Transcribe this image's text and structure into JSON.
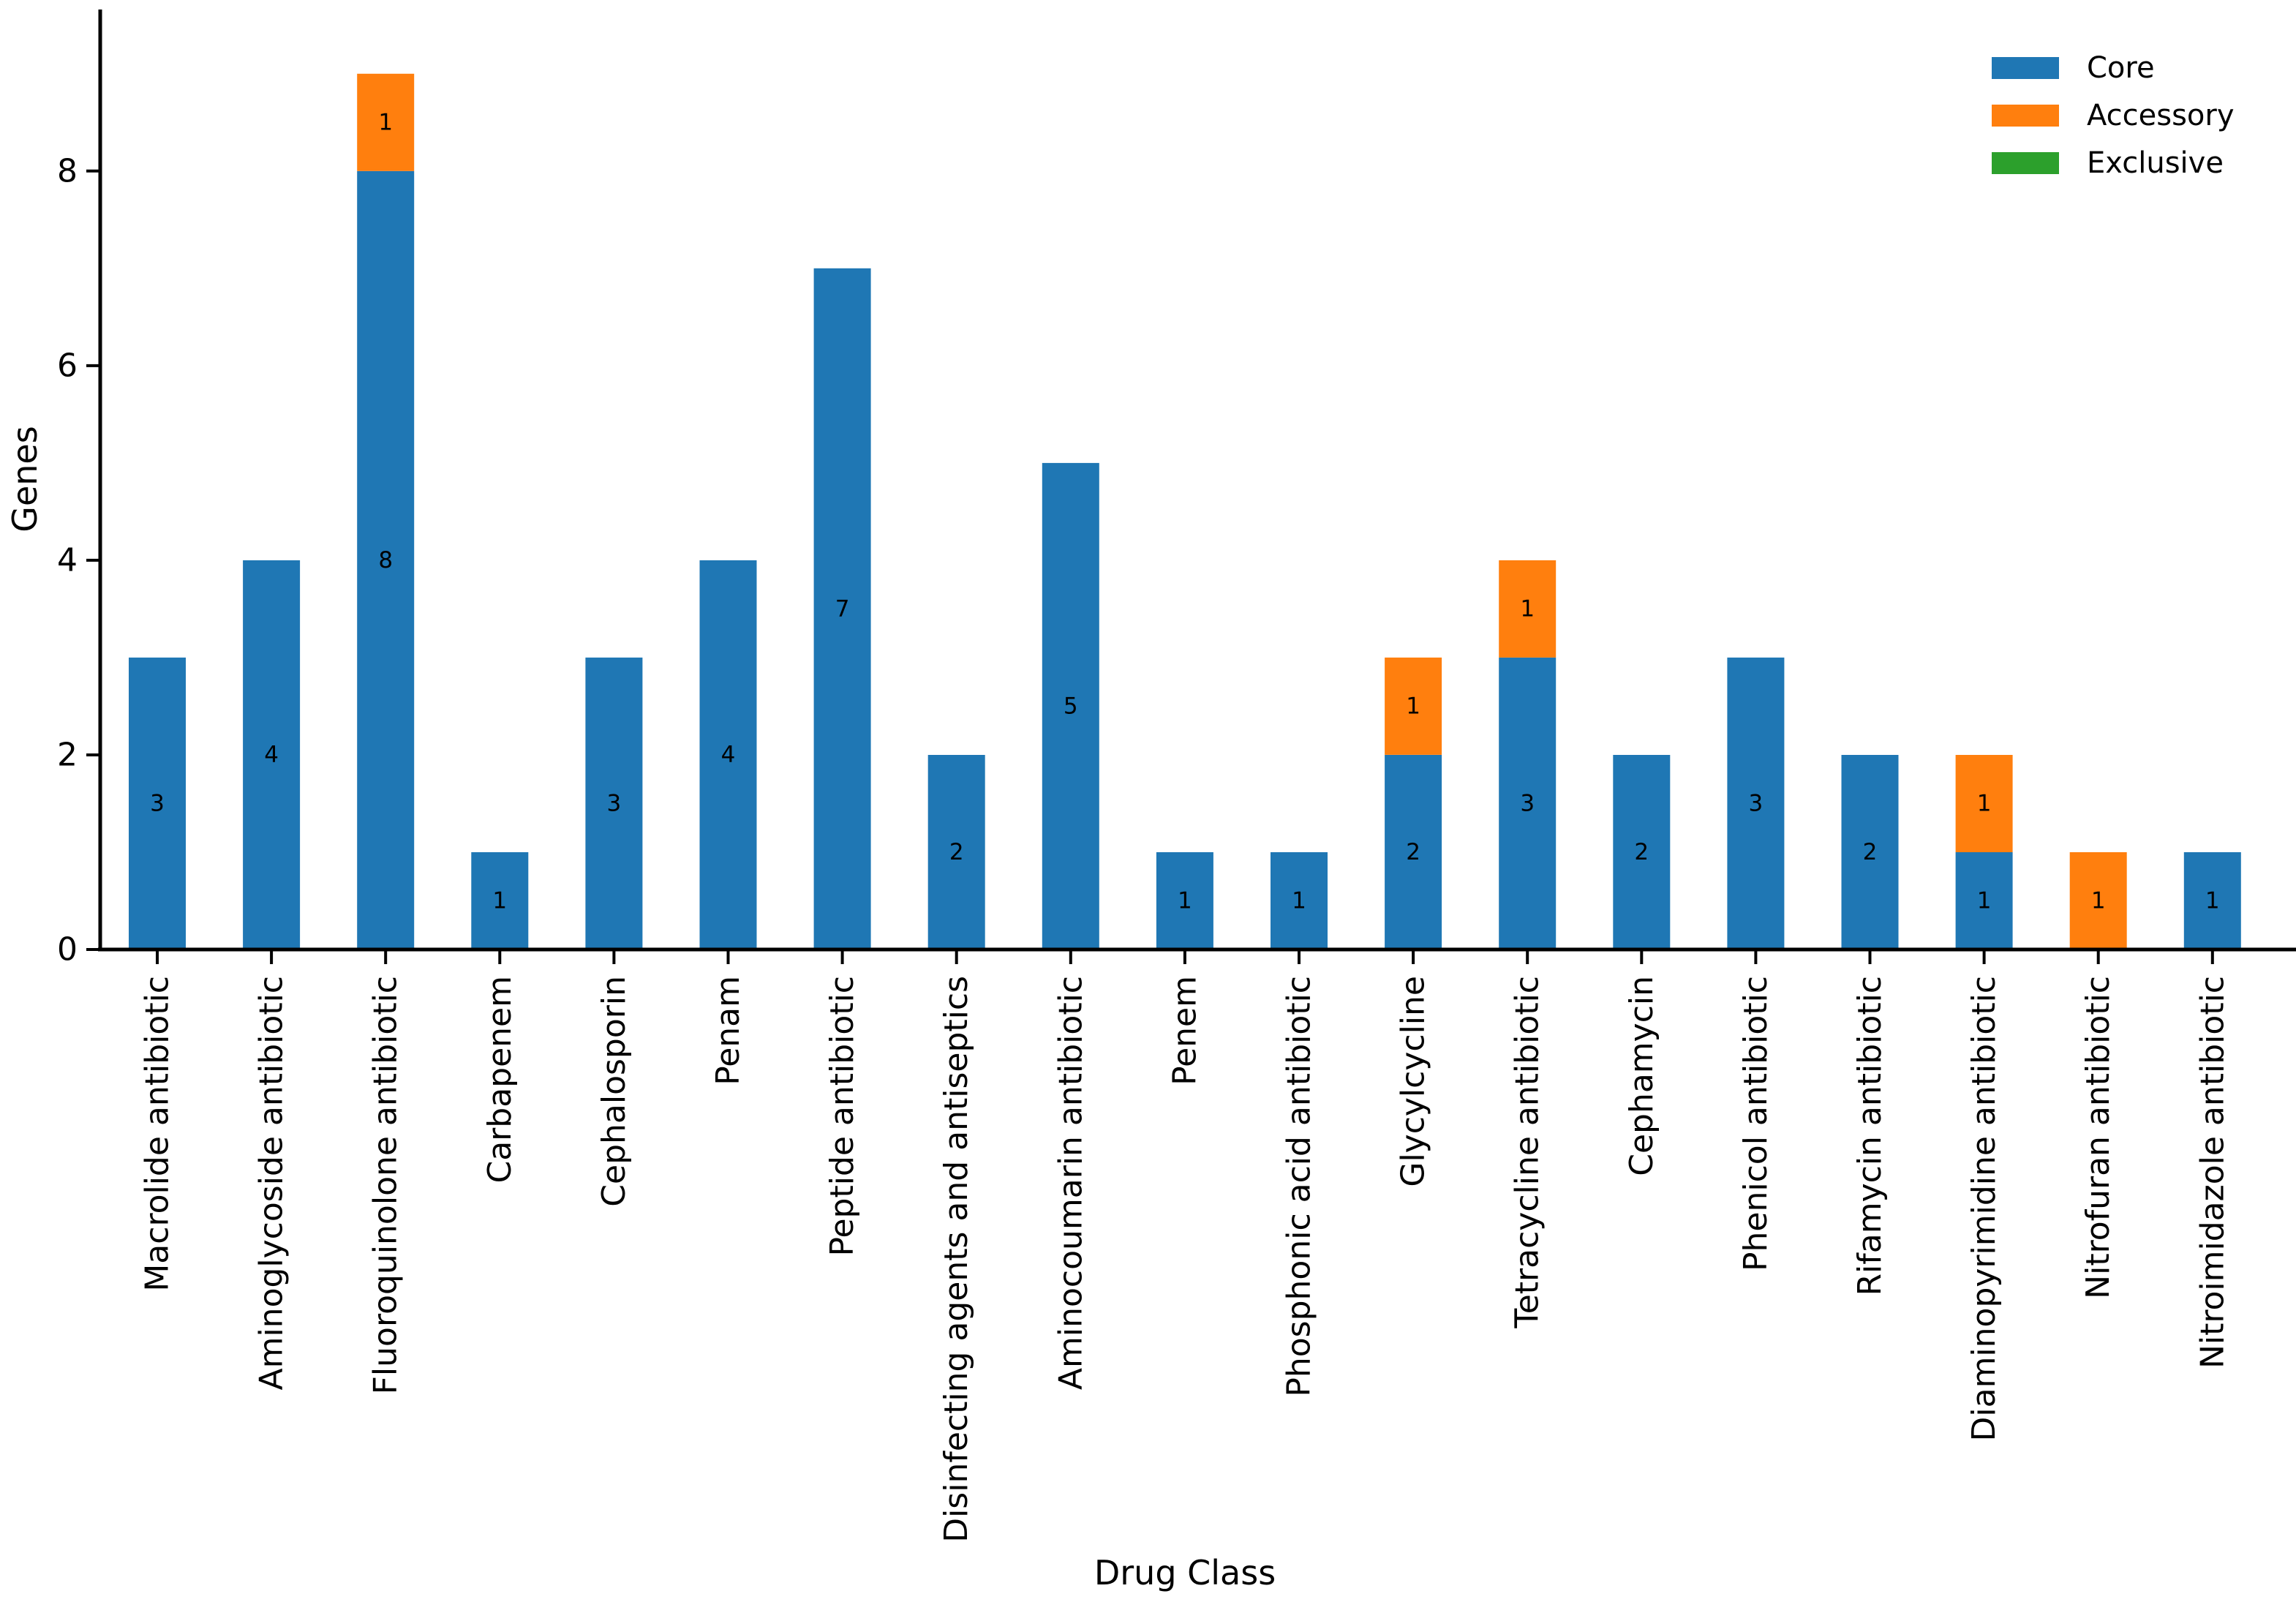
{
  "figure": {
    "background_color": "#ffffff",
    "axis_color": "#000000",
    "text_color": "#000000"
  },
  "chart_data": {
    "type": "bar",
    "stacked": true,
    "title": "",
    "xlabel": "Drug Class",
    "ylabel": "Genes",
    "categories": [
      "Macrolide antibiotic",
      "Aminoglycoside antibiotic",
      "Fluoroquinolone antibiotic",
      "Carbapenem",
      "Cephalosporin",
      "Penam",
      "Peptide antibiotic",
      "Disinfecting agents and antiseptics",
      "Aminocoumarin antibiotic",
      "Penem",
      "Phosphonic acid antibiotic",
      "Glycylcycline",
      "Tetracycline antibiotic",
      "Cephamycin",
      "Phenicol antibiotic",
      "Rifamycin antibiotic",
      "Diaminopyrimidine antibiotic",
      "Nitrofuran antibiotic",
      "Nitroimidazole antibiotic"
    ],
    "series": [
      {
        "name": "Core",
        "color": "#1f77b4",
        "values": [
          3,
          4,
          8,
          1,
          3,
          4,
          7,
          2,
          5,
          1,
          1,
          2,
          3,
          2,
          3,
          2,
          1,
          0,
          1
        ]
      },
      {
        "name": "Accessory",
        "color": "#ff7f0e",
        "values": [
          0,
          0,
          1,
          0,
          0,
          0,
          0,
          0,
          0,
          0,
          0,
          1,
          1,
          0,
          0,
          0,
          1,
          1,
          0
        ]
      },
      {
        "name": "Exclusive",
        "color": "#2ca02c",
        "values": [
          0,
          0,
          0,
          0,
          0,
          0,
          0,
          0,
          0,
          0,
          0,
          0,
          0,
          0,
          0,
          0,
          0,
          0,
          0
        ]
      }
    ],
    "bar_value_labels_visible": true,
    "yticks": [
      0,
      2,
      4,
      6,
      8
    ],
    "ylim": [
      0,
      9.66
    ],
    "xticklabel_rotation": 90,
    "grid": false,
    "legend_position": "upper-right",
    "legend_entries": [
      "Core",
      "Accessory",
      "Exclusive"
    ]
  }
}
